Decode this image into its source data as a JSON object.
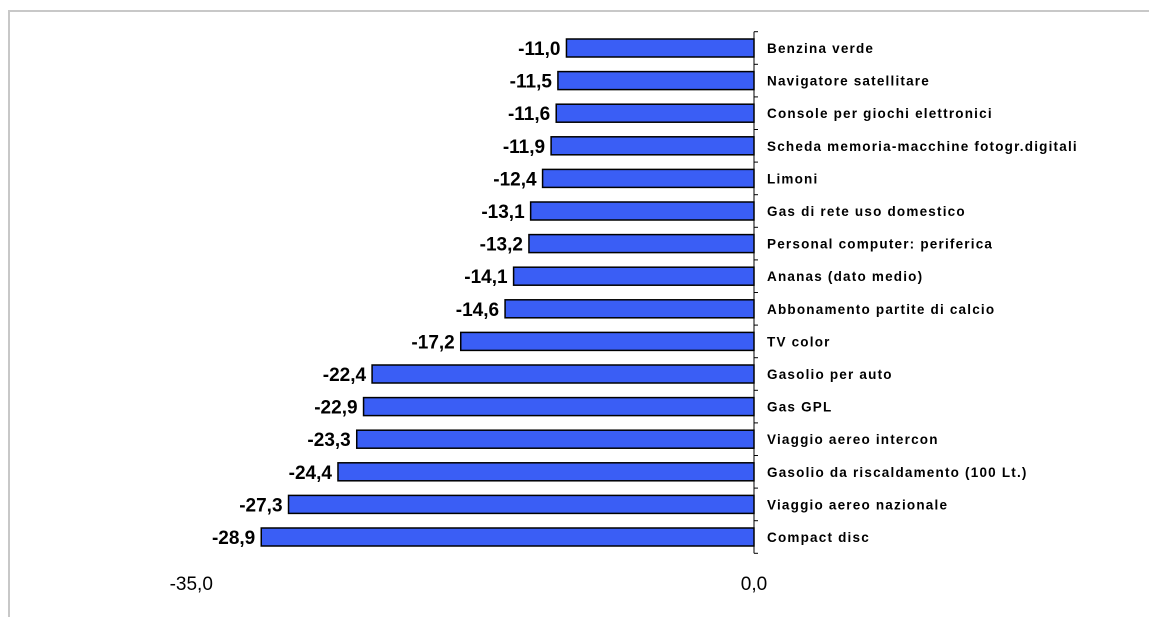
{
  "chart_data": {
    "type": "bar",
    "orientation": "horizontal",
    "categories": [
      "Benzina verde",
      "Navigatore satellitare",
      "Console per giochi elettronici",
      "Scheda memoria-macchine fotogr.digitali",
      "Limoni",
      "Gas di rete uso domestico",
      "Personal computer: periferica",
      "Ananas (dato medio)",
      "Abbonamento partite di calcio",
      "TV color",
      "Gasolio per auto",
      "Gas GPL",
      "Viaggio aereo intercon",
      "Gasolio da riscaldamento (100 Lt.)",
      "Viaggio aereo nazionale",
      "Compact disc"
    ],
    "values": [
      -11.0,
      -11.5,
      -11.6,
      -11.9,
      -12.4,
      -13.1,
      -13.2,
      -14.1,
      -14.6,
      -17.2,
      -22.4,
      -22.9,
      -23.3,
      -24.4,
      -27.3,
      -28.9
    ],
    "value_labels": [
      "-11,0",
      "-11,5",
      "-11,6",
      "-11,9",
      "-12,4",
      "-13,1",
      "-13,2",
      "-14,1",
      "-14,6",
      "-17,2",
      "-22,4",
      "-22,9",
      "-23,3",
      "-24,4",
      "-27,3",
      "-28,9"
    ],
    "xlim": [
      -35.0,
      0.0
    ],
    "x_tick_labels": [
      "-35,0",
      "0,0"
    ],
    "title": "",
    "xlabel": "",
    "ylabel": "",
    "grid": false,
    "legend": "none",
    "bar_color": "#3A5EF5",
    "bar_border_color": "#000000"
  }
}
